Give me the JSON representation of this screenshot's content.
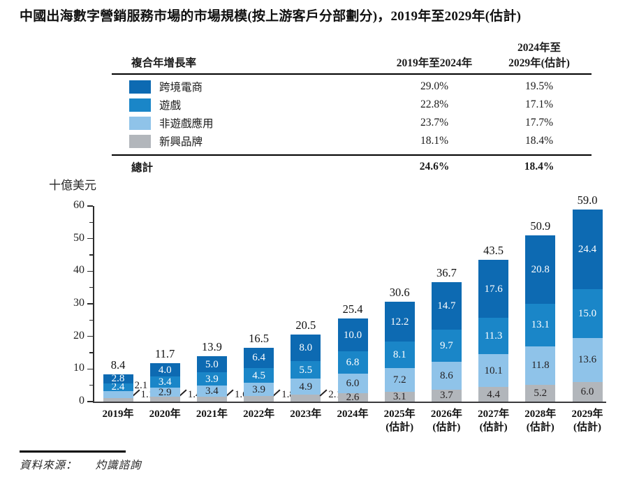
{
  "title": "中國出海數字營銷服務市場的市場規模(按上游客戶分部劃分)，2019年至2029年(估計)",
  "cagr_table": {
    "header": {
      "metric": "複合年增長率",
      "period1": "2019年至2024年",
      "period2_line1": "2024年至",
      "period2_line2": "2029年(估計)"
    },
    "rows": [
      {
        "label": "跨境電商",
        "color": "#0d6ab2",
        "cagr_2019_2024": "29.0%",
        "cagr_2024_2029": "19.5%"
      },
      {
        "label": "遊戲",
        "color": "#1a86c8",
        "cagr_2019_2024": "22.8%",
        "cagr_2024_2029": "17.1%"
      },
      {
        "label": "非遊戲應用",
        "color": "#8fc3e9",
        "cagr_2019_2024": "23.7%",
        "cagr_2024_2029": "17.7%"
      },
      {
        "label": "新興品牌",
        "color": "#b2b6bb",
        "cagr_2019_2024": "18.1%",
        "cagr_2024_2029": "18.4%"
      }
    ],
    "total": {
      "label": "總計",
      "cagr_2019_2024": "24.6%",
      "cagr_2024_2029": "18.4%"
    }
  },
  "chart_data": {
    "type": "bar",
    "stacked": true,
    "title": "中國出海數字營銷服務市場的市場規模(按上游客戶分部劃分)",
    "unit_label": "十億美元",
    "ylabel": "十億美元",
    "ylim": [
      0,
      60
    ],
    "y_ticks": [
      0,
      10,
      20,
      30,
      40,
      50,
      60
    ],
    "y_minor_ticks": [
      5,
      15,
      25,
      35,
      45,
      55
    ],
    "grid": false,
    "legend_position": "table-top-left",
    "categories": [
      [
        "2019年"
      ],
      [
        "2020年"
      ],
      [
        "2021年"
      ],
      [
        "2022年"
      ],
      [
        "2023年"
      ],
      [
        "2024年"
      ],
      [
        "2025年",
        "(估計)"
      ],
      [
        "2026年",
        "(估計)"
      ],
      [
        "2027年",
        "(估計)"
      ],
      [
        "2028年",
        "(估計)"
      ],
      [
        "2029年",
        "(估計)"
      ]
    ],
    "series": [
      {
        "name": "跨境電商",
        "color": "#0d6ab2",
        "label_color": "#ffffff",
        "values": [
          "2.8",
          "4.0",
          "5.0",
          "6.4",
          "8.0",
          "10.0",
          "12.2",
          "14.7",
          "17.6",
          "20.8",
          "24.4"
        ]
      },
      {
        "name": "遊戲",
        "color": "#1a86c8",
        "label_color": "#ffffff",
        "values": [
          "2.4",
          "3.4",
          "3.9",
          "4.5",
          "5.5",
          "6.8",
          "8.1",
          "9.7",
          "11.3",
          "13.1",
          "15.0"
        ]
      },
      {
        "name": "非遊戲應用",
        "color": "#8fc3e9",
        "label_color": "#231f20",
        "values": [
          "2.1",
          "2.9",
          "3.4",
          "3.9",
          "4.9",
          "6.0",
          "7.2",
          "8.6",
          "10.1",
          "11.8",
          "13.6"
        ]
      },
      {
        "name": "新興品牌",
        "color": "#b2b6bb",
        "label_color": "#231f20",
        "values": [
          "1.1",
          "1.4",
          "1.6",
          "1.8",
          "2.1",
          "2.6",
          "3.1",
          "3.7",
          "4.4",
          "5.2",
          "6.0"
        ]
      }
    ],
    "totals": [
      "8.4",
      "11.7",
      "13.9",
      "16.5",
      "20.5",
      "25.4",
      "30.6",
      "36.7",
      "43.5",
      "50.9",
      "59.0"
    ]
  },
  "source": {
    "label": "資料來源：",
    "value": "灼識諮詢"
  }
}
